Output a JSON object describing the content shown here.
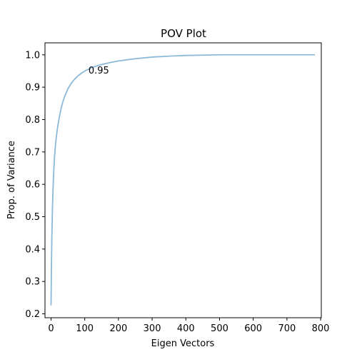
{
  "chart_data": {
    "type": "line",
    "title": "POV Plot",
    "xlabel": "Eigen Vectors",
    "ylabel": "Prop. of Variance",
    "xlim": [
      -18,
      802
    ],
    "ylim": [
      0.188,
      1.037
    ],
    "xticks": [
      0,
      100,
      200,
      300,
      400,
      500,
      600,
      700,
      800
    ],
    "yticks": [
      0.2,
      0.3,
      0.4,
      0.5,
      0.6,
      0.7,
      0.8,
      0.9,
      1.0
    ],
    "grid": false,
    "series_color": "#8bb9d8",
    "series": [
      {
        "x": [
          0,
          1,
          2,
          4,
          6,
          8,
          10,
          13,
          16,
          20,
          25,
          30,
          35,
          40,
          45,
          50,
          60,
          70,
          80,
          90,
          100,
          110,
          120,
          130,
          150,
          175,
          200,
          250,
          300,
          350,
          400,
          450,
          500,
          550,
          600,
          700,
          783
        ],
        "values": [
          0.226,
          0.33,
          0.41,
          0.52,
          0.59,
          0.64,
          0.68,
          0.72,
          0.75,
          0.78,
          0.81,
          0.835,
          0.855,
          0.87,
          0.883,
          0.895,
          0.912,
          0.925,
          0.935,
          0.943,
          0.95,
          0.955,
          0.96,
          0.964,
          0.97,
          0.976,
          0.981,
          0.988,
          0.993,
          0.996,
          0.998,
          0.999,
          1.0,
          1.0,
          1.0,
          1.0,
          1.0
        ]
      }
    ],
    "annotations": [
      {
        "text": "0.95",
        "x": 111,
        "y": 0.953
      }
    ]
  }
}
